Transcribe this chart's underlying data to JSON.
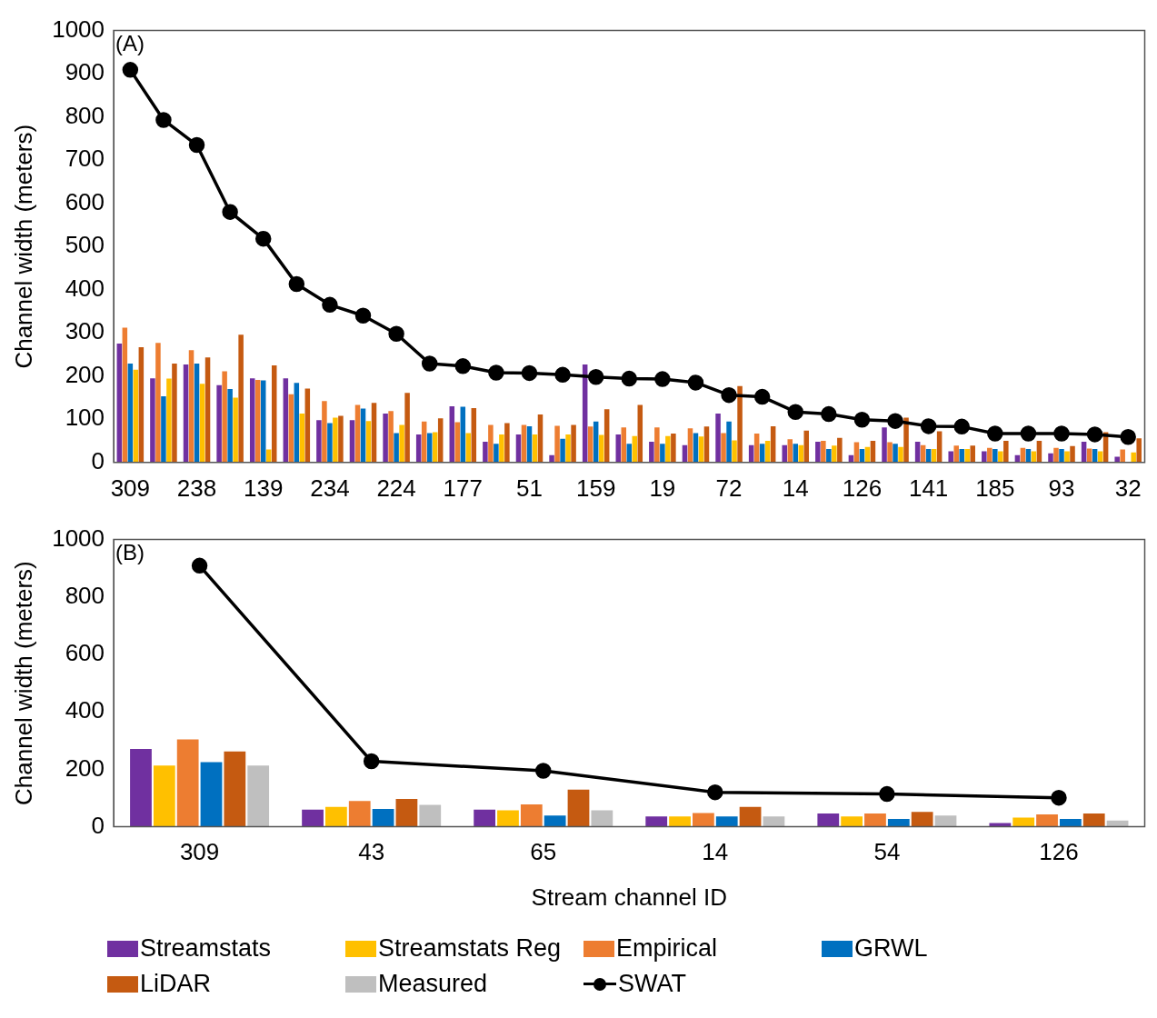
{
  "chart_data": [
    {
      "type": "bar",
      "ylabel": "Channel width (meters)",
      "annotations": [
        "(A)"
      ],
      "categories": [
        "309",
        null,
        "238",
        null,
        "139",
        null,
        "234",
        null,
        "224",
        null,
        "177",
        null,
        "51",
        null,
        "159",
        null,
        "19",
        null,
        "72",
        null,
        "14",
        null,
        "126",
        null,
        "141",
        null,
        "185",
        null,
        "93",
        null,
        "32"
      ],
      "series": [
        {
          "name": "Streamstats",
          "color": "#7030a0",
          "values": [
            275,
            195,
            227,
            179,
            195,
            195,
            98,
            98,
            113,
            65,
            130,
            48,
            65,
            17,
            227,
            65,
            48,
            40,
            113,
            40,
            40,
            48,
            17,
            81,
            48,
            26,
            26,
            17,
            21,
            48,
            13
          ]
        },
        {
          "name": "Empirical",
          "color": "#ed7d31",
          "values": [
            312,
            277,
            260,
            211,
            191,
            158,
            142,
            133,
            119,
            95,
            93,
            87,
            87,
            85,
            83,
            81,
            81,
            79,
            68,
            67,
            54,
            50,
            47,
            47,
            40,
            39,
            34,
            34,
            34,
            32,
            30
          ]
        },
        {
          "name": "GRWL",
          "color": "#0070c0",
          "values": [
            229,
            153,
            229,
            170,
            190,
            184,
            91,
            125,
            68,
            68,
            129,
            43,
            84,
            55,
            95,
            43,
            43,
            68,
            95,
            43,
            43,
            31,
            31,
            43,
            31,
            31,
            31,
            31,
            31,
            31,
            null
          ]
        },
        {
          "name": "Streamstats Reg",
          "color": "#ffc000",
          "values": [
            215,
            194,
            182,
            150,
            30,
            113,
            104,
            96,
            87,
            70,
            68,
            65,
            65,
            65,
            64,
            61,
            61,
            60,
            51,
            50,
            40,
            39,
            36,
            36,
            31,
            31,
            26,
            26,
            26,
            26,
            23
          ]
        },
        {
          "name": "LiDAR",
          "color": "#c55a11",
          "values": [
            267,
            229,
            243,
            296,
            225,
            171,
            108,
            138,
            161,
            102,
            126,
            91,
            111,
            87,
            123,
            133,
            67,
            83,
            177,
            84,
            74,
            57,
            50,
            104,
            72,
            39,
            50,
            50,
            38,
            70,
            56
          ]
        },
        {
          "name": "SWAT",
          "type": "line",
          "color": "#000000",
          "marker": "circle",
          "values": [
            909,
            793,
            735,
            580,
            518,
            413,
            365,
            340,
            298,
            229,
            223,
            208,
            207,
            203,
            198,
            194,
            193,
            185,
            156,
            152,
            117,
            112,
            99,
            96,
            84,
            83,
            67,
            67,
            67,
            65,
            59
          ]
        }
      ],
      "ylim": [
        0,
        1000
      ],
      "yticks": [
        0,
        100,
        200,
        300,
        400,
        500,
        600,
        700,
        800,
        900,
        1000
      ],
      "grid": false,
      "legend": "bottom"
    },
    {
      "type": "bar",
      "ylabel": "Channel width (meters)",
      "xlabel": "Stream channel ID",
      "annotations": [
        "(B)"
      ],
      "categories": [
        "309",
        "43",
        "65",
        "14",
        "54",
        "126"
      ],
      "series": [
        {
          "name": "Streamstats",
          "color": "#7030a0",
          "values": [
            271,
            60,
            60,
            36,
            46,
            13
          ]
        },
        {
          "name": "Streamstats Reg",
          "color": "#ffc000",
          "values": [
            213,
            69,
            57,
            36,
            36,
            32
          ]
        },
        {
          "name": "Empirical",
          "color": "#ed7d31",
          "values": [
            304,
            90,
            78,
            48,
            46,
            43
          ]
        },
        {
          "name": "GRWL",
          "color": "#0070c0",
          "values": [
            225,
            62,
            39,
            36,
            27,
            27
          ]
        },
        {
          "name": "LiDAR",
          "color": "#c55a11",
          "values": [
            262,
            97,
            129,
            69,
            52,
            46
          ]
        },
        {
          "name": "Measured",
          "color": "#bfbfbf",
          "values": [
            213,
            76,
            57,
            36,
            39,
            22
          ]
        },
        {
          "name": "SWAT",
          "type": "line",
          "color": "#000000",
          "marker": "circle",
          "values": [
            909,
            228,
            195,
            120,
            114,
            101
          ]
        }
      ],
      "ylim": [
        0,
        1000
      ],
      "yticks": [
        0,
        200,
        400,
        600,
        800,
        1000
      ],
      "grid": false,
      "legend": "bottom"
    }
  ]
}
